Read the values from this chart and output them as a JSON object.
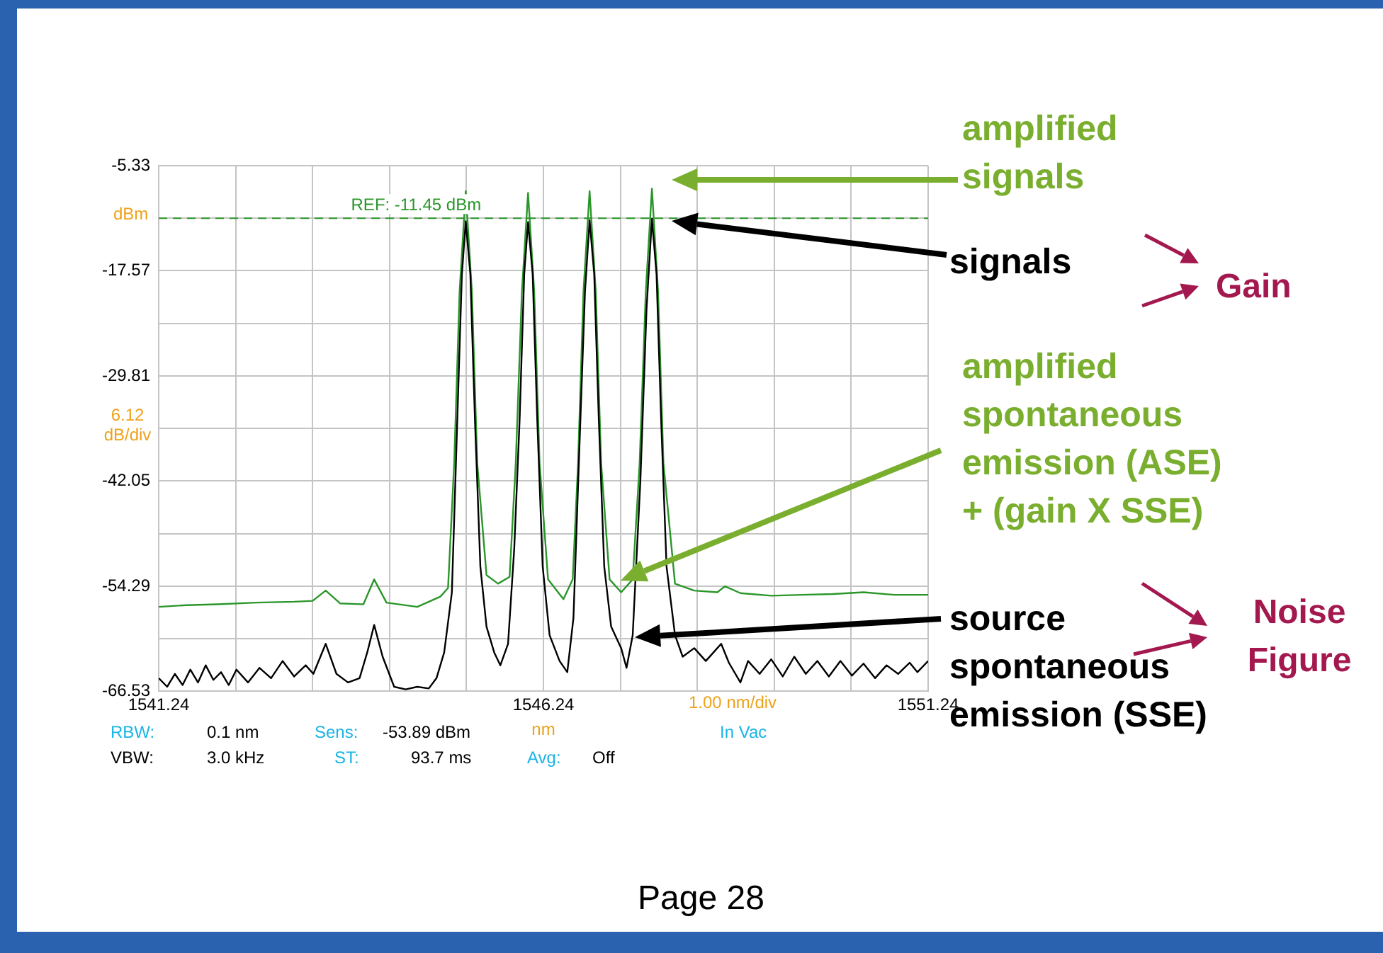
{
  "chart_data": {
    "type": "line",
    "xlabel": "nm",
    "ylabel": "dBm",
    "xlim": [
      1541.24,
      1551.24
    ],
    "ylim": [
      -66.53,
      -5.33
    ],
    "xticks": [
      1541.24,
      {
        "value": 1542.24,
        "label": null
      },
      {
        "value": 1543.24,
        "label": null
      },
      {
        "value": 1544.24,
        "label": null
      },
      {
        "value": 1545.24,
        "label": null
      },
      1546.24,
      {
        "value": 1547.24,
        "label": null
      },
      {
        "value": 1548.24,
        "label": null
      },
      {
        "value": 1549.24,
        "label": null
      },
      {
        "value": 1550.24,
        "label": null
      },
      1551.24
    ],
    "yticks": [
      -66.53,
      {
        "value": -60.41,
        "label": null
      },
      -54.29,
      {
        "value": -48.17,
        "label": null
      },
      -42.05,
      {
        "value": -35.93,
        "label": null
      },
      -29.81,
      {
        "value": -23.69,
        "label": null
      },
      -17.57,
      {
        "value": -11.45,
        "label": null
      },
      -5.33
    ],
    "grid": true,
    "legend": false,
    "marker": "none",
    "line_style": "solid",
    "series": [
      {
        "color": "#000000",
        "x": [
          1541.24,
          1541.35,
          1541.45,
          1541.55,
          1541.65,
          1541.75,
          1541.85,
          1541.95,
          1542.05,
          1542.15,
          1542.25,
          1542.4,
          1542.55,
          1542.7,
          1542.85,
          1543.0,
          1543.15,
          1543.25,
          1543.41,
          1543.55,
          1543.7,
          1543.85,
          1543.95,
          1544.04,
          1544.15,
          1544.3,
          1544.45,
          1544.6,
          1544.75,
          1544.85,
          1544.95,
          1545.05,
          1545.12,
          1545.18,
          1545.23,
          1545.29,
          1545.35,
          1545.42,
          1545.5,
          1545.6,
          1545.68,
          1545.78,
          1545.86,
          1545.93,
          1545.99,
          1546.04,
          1546.1,
          1546.16,
          1546.23,
          1546.32,
          1546.45,
          1546.55,
          1546.63,
          1546.7,
          1546.78,
          1546.84,
          1546.9,
          1546.96,
          1547.03,
          1547.12,
          1547.25,
          1547.32,
          1547.4,
          1547.5,
          1547.58,
          1547.65,
          1547.71,
          1547.77,
          1547.84,
          1547.95,
          1548.05,
          1548.2,
          1548.35,
          1548.55,
          1548.65,
          1548.8,
          1548.9,
          1549.05,
          1549.2,
          1549.35,
          1549.5,
          1549.65,
          1549.8,
          1549.95,
          1550.1,
          1550.25,
          1550.4,
          1550.55,
          1550.7,
          1550.85,
          1551.0,
          1551.1,
          1551.24
        ],
        "values": [
          -65.0,
          -66.0,
          -64.5,
          -65.8,
          -64.0,
          -65.5,
          -63.5,
          -65.2,
          -64.3,
          -65.8,
          -64.0,
          -65.5,
          -63.8,
          -65.0,
          -63.0,
          -64.8,
          -63.5,
          -64.5,
          -61.0,
          -64.5,
          -65.5,
          -65.0,
          -62.0,
          -58.8,
          -62.5,
          -66.0,
          -66.3,
          -66.0,
          -66.2,
          -65.0,
          -62.0,
          -55,
          -35,
          -18,
          -11.8,
          -18,
          -35,
          -52,
          -59,
          -62,
          -63.5,
          -61,
          -50,
          -35,
          -18,
          -11.9,
          -18,
          -35,
          -52,
          -60,
          -63,
          -64.3,
          -58,
          -40,
          -20,
          -11.7,
          -18,
          -35,
          -52,
          -59,
          -61.5,
          -63.8,
          -60,
          -42,
          -22,
          -11.5,
          -18,
          -35,
          -52,
          -60,
          -62.5,
          -61.5,
          -63,
          -61,
          -63.2,
          -65.5,
          -63,
          -64.5,
          -62.8,
          -64.8,
          -62.5,
          -64.5,
          -63,
          -64.8,
          -63,
          -64.7,
          -63.3,
          -65,
          -63.5,
          -64.5,
          -63.2,
          -64.3,
          -63.0
        ]
      },
      {
        "color": "#2a962a",
        "x": [
          1541.24,
          1541.6,
          1542.0,
          1542.5,
          1543.0,
          1543.24,
          1543.41,
          1543.6,
          1543.9,
          1544.04,
          1544.2,
          1544.6,
          1544.9,
          1545.0,
          1545.08,
          1545.15,
          1545.23,
          1545.31,
          1545.38,
          1545.5,
          1545.65,
          1545.8,
          1545.88,
          1545.96,
          1546.04,
          1546.12,
          1546.19,
          1546.3,
          1546.5,
          1546.62,
          1546.69,
          1546.76,
          1546.84,
          1546.92,
          1546.99,
          1547.1,
          1547.25,
          1547.4,
          1547.49,
          1547.57,
          1547.65,
          1547.73,
          1547.8,
          1547.95,
          1548.2,
          1548.5,
          1548.6,
          1548.8,
          1549.2,
          1549.6,
          1550.0,
          1550.4,
          1550.8,
          1551.24
        ],
        "values": [
          -56.7,
          -56.5,
          -56.4,
          -56.2,
          -56.1,
          -56.0,
          -54.8,
          -56.3,
          -56.4,
          -53.5,
          -56.2,
          -56.7,
          -55.5,
          -54.5,
          -40,
          -20,
          -8.3,
          -20,
          -40,
          -53.0,
          -54.0,
          -53.2,
          -40,
          -20,
          -8.5,
          -20,
          -40,
          -53.5,
          -55.8,
          -53.5,
          -40,
          -20,
          -8.3,
          -20,
          -40,
          -53.5,
          -55.0,
          -53.5,
          -40,
          -20,
          -8.0,
          -20,
          -40,
          -54.0,
          -54.8,
          -55.0,
          -54.3,
          -55.1,
          -55.4,
          -55.3,
          -55.2,
          -55.0,
          -55.3,
          -55.3
        ]
      }
    ],
    "ref_lines": [
      {
        "axis": "y",
        "value": -11.45,
        "label": "REF: -11.45 dBm",
        "color": "#2a962a",
        "line_style": "dashed"
      }
    ],
    "annotations": [
      "6.12 dB/div",
      "1.00 nm/div",
      "RBW:",
      "0.1 nm",
      "Sens:",
      "-53.89 dBm",
      "In Vac",
      "VBW:",
      "3.0 kHz",
      "ST:",
      "93.7 ms",
      "Avg:",
      "Off",
      "Gain",
      "Noise Figure",
      "Page 28",
      "amplified signals",
      "signals",
      "amplified spontaneous emission (ASE) + (gain X SSE)",
      "source spontaneous emission (SSE)"
    ]
  }
}
